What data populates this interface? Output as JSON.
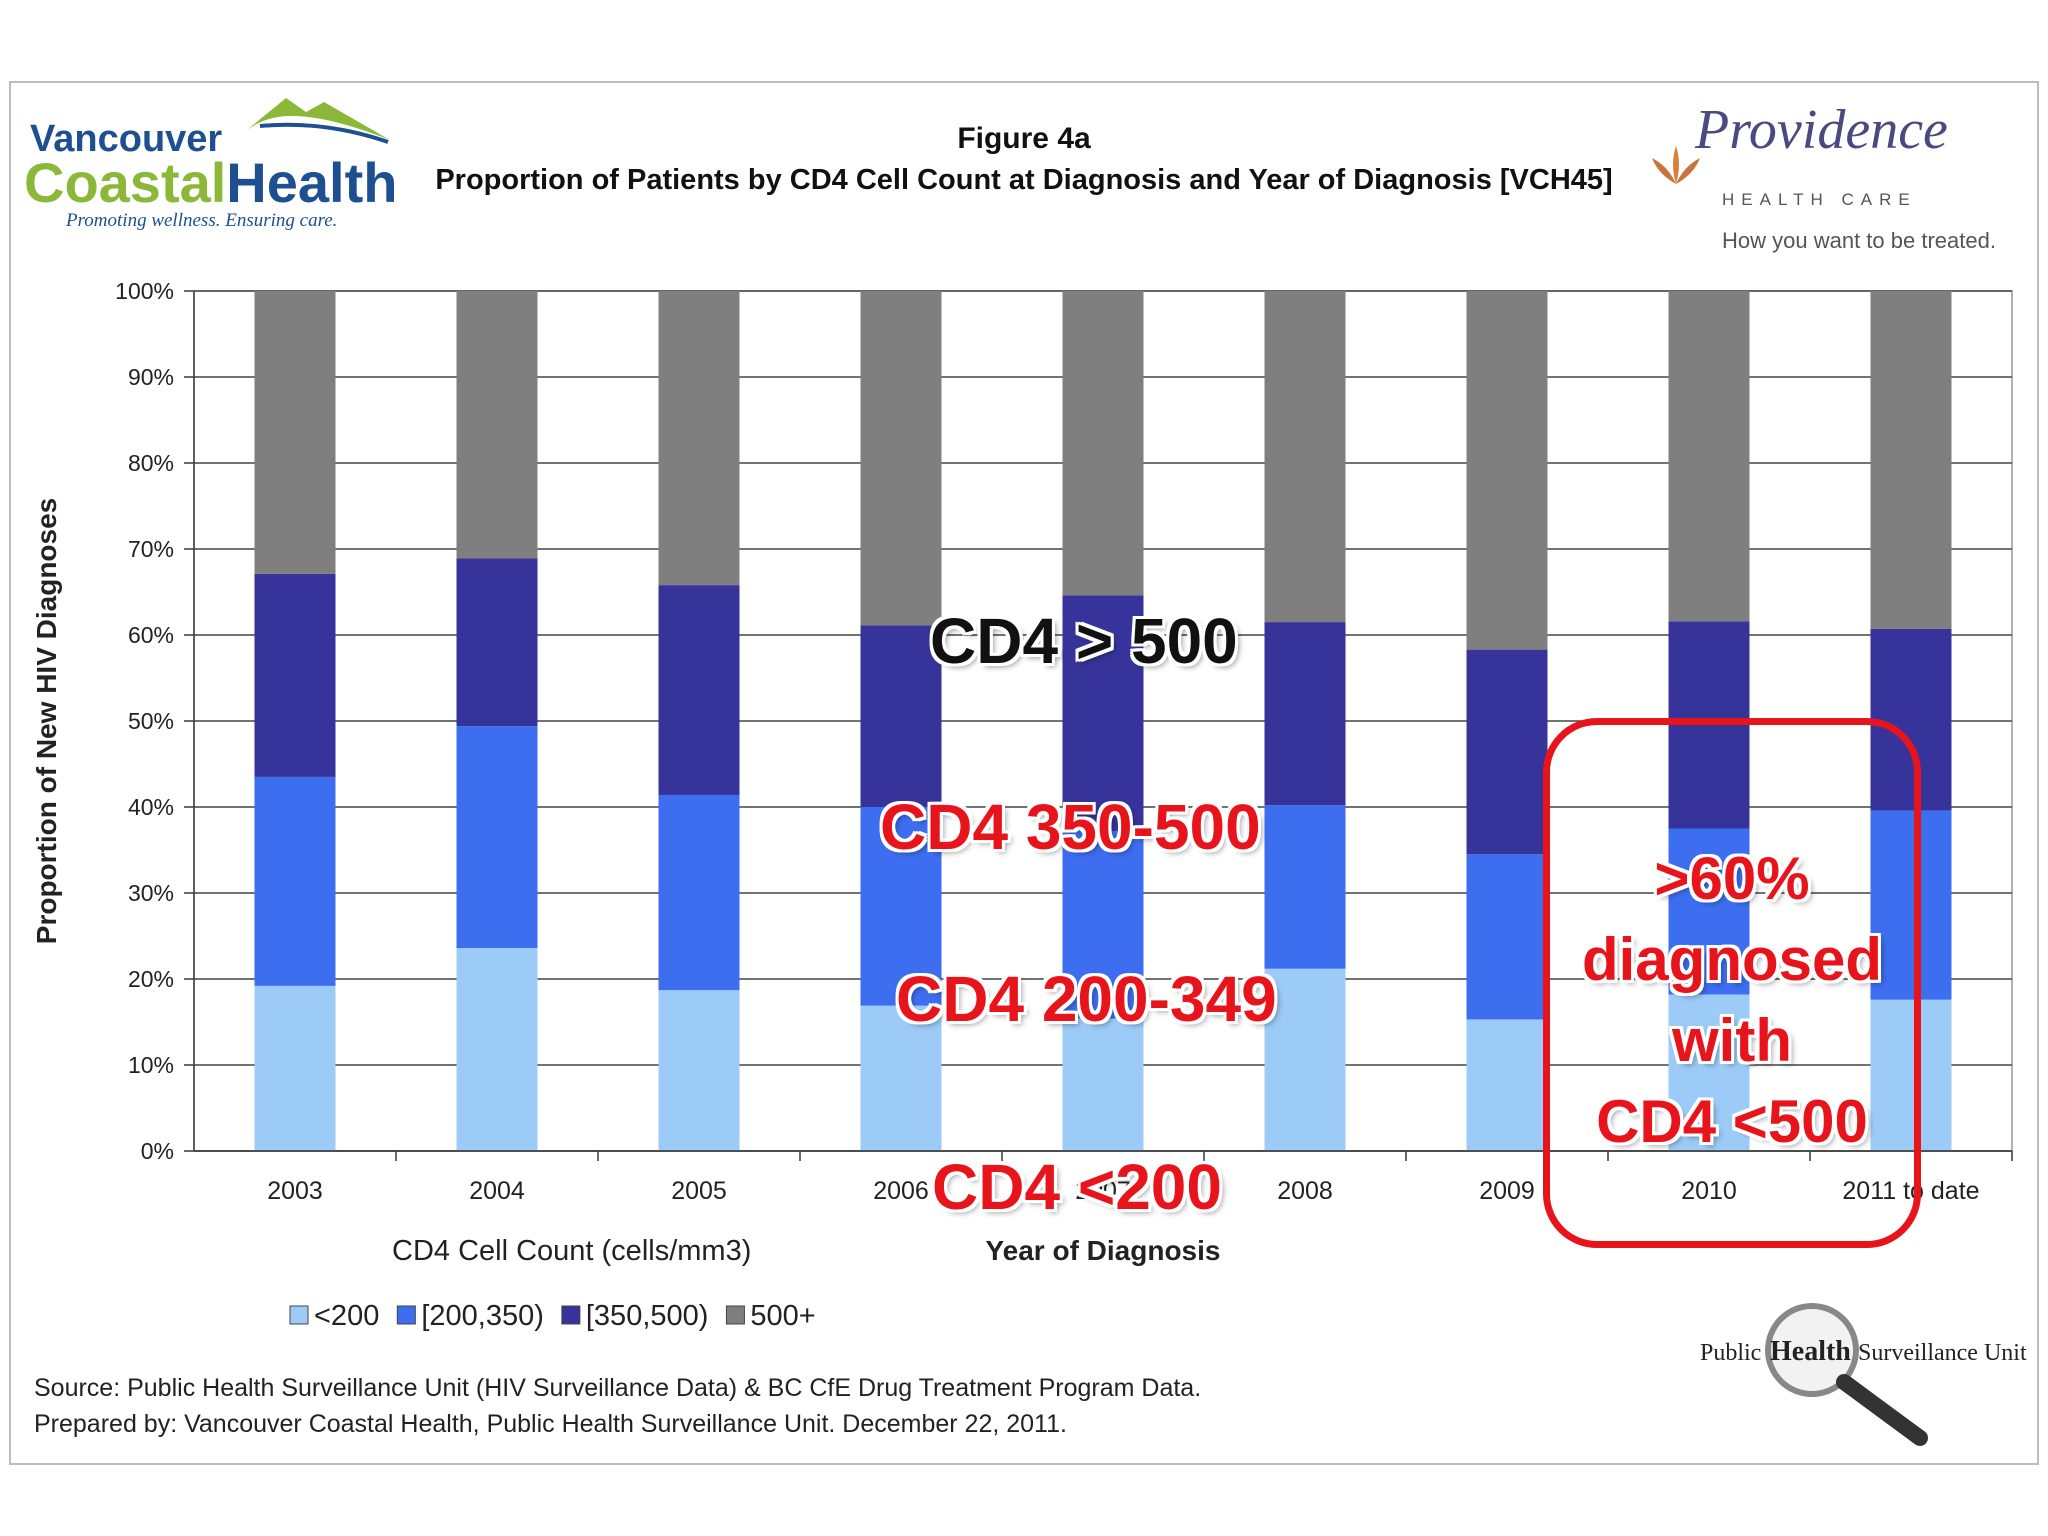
{
  "header": {
    "figure_label": "Figure 4a",
    "title": "Proportion of Patients by CD4 Cell Count at Diagnosis and Year of Diagnosis [VCH45]"
  },
  "logos": {
    "vch": {
      "line1": "Vancouver",
      "line2a": "Coastal",
      "line2b": "Health",
      "tagline": "Promoting wellness. Ensuring care."
    },
    "providence": {
      "name": "Providence",
      "sub": "HEALTH CARE",
      "tagline": "How you want to be treated."
    },
    "phsu": {
      "public": "Public",
      "health": "Health",
      "unit": "Surveillance Unit"
    }
  },
  "chart_data": {
    "type": "bar",
    "stacked": true,
    "categories": [
      "2003",
      "2004",
      "2005",
      "2006",
      "2007",
      "2008",
      "2009",
      "2010",
      "2011 to date"
    ],
    "series": [
      {
        "name": "<200",
        "color": "#9ccbf7",
        "values": [
          19.2,
          23.6,
          18.7,
          16.9,
          15.4,
          21.2,
          15.3,
          18.2,
          17.6
        ]
      },
      {
        "name": "[200,350)",
        "color": "#3d6ef0",
        "values": [
          24.3,
          25.8,
          22.7,
          23.1,
          21.8,
          19.0,
          19.2,
          19.3,
          22.0
        ]
      },
      {
        "name": "[350,500)",
        "color": "#36349a",
        "values": [
          23.6,
          19.5,
          24.4,
          21.1,
          27.4,
          21.3,
          23.8,
          24.1,
          21.1
        ]
      },
      {
        "name": "500+",
        "color": "#7f7f80",
        "values": [
          32.9,
          31.1,
          34.2,
          38.9,
          35.4,
          38.5,
          41.7,
          38.4,
          39.3
        ]
      }
    ],
    "xlabel": "Year of Diagnosis",
    "ylabel": "Proportion of New HIV Diagnoses",
    "legend_title": "CD4 Cell Count (cells/mm3)",
    "legend_position": "bottom-left",
    "ylim": [
      0,
      100
    ],
    "yticks": [
      "0%",
      "10%",
      "20%",
      "30%",
      "40%",
      "50%",
      "60%",
      "70%",
      "80%",
      "90%",
      "100%"
    ],
    "grid": true
  },
  "annotations": {
    "gt500": "CD4 > 500",
    "r350": "CD4 350-500",
    "r200": "CD4 200-349",
    "lt200": "CD4 <200",
    "note_lines": [
      ">60%",
      "diagnosed",
      "with",
      "CD4 <500"
    ]
  },
  "source": {
    "line1": "Source: Public Health Surveillance Unit (HIV Surveillance Data) & BC CfE Drug Treatment Program Data.",
    "line2": "Prepared by: Vancouver Coastal Health, Public Health Surveillance Unit. December 22, 2011."
  },
  "colors": {
    "accent": "#e8141b"
  }
}
